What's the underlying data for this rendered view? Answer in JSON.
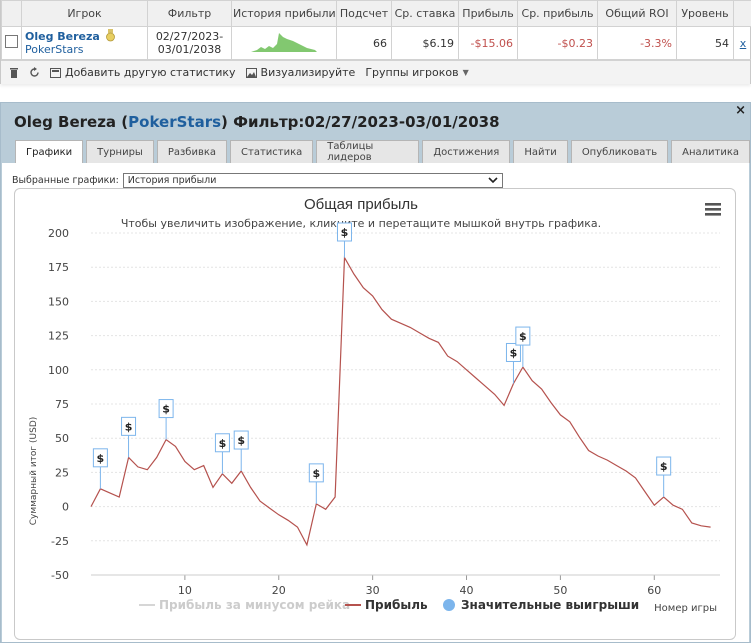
{
  "summary": {
    "headers": [
      "Игрок",
      "Фильтр",
      "История прибыли",
      "Подсчет",
      "Ср. ставка",
      "Прибыль",
      "Ср. прибыль",
      "Общий ROI",
      "Уровень"
    ],
    "row": {
      "player": "Oleg Bereza",
      "site": "PokerStars",
      "filter_line1": "02/27/2023-",
      "filter_line2": "03/01/2038",
      "count": "66",
      "avg_stake": "$6.19",
      "profit": "-$15.06",
      "avg_profit": "-$0.23",
      "roi": "-3.3%",
      "level": "54",
      "remove": "x"
    }
  },
  "toolbar": {
    "add_stats": "Добавить другую статистику",
    "visualize": "Визуализируйте",
    "groups": "Группы игроков"
  },
  "panel": {
    "player": "Oleg Bereza",
    "open_paren": "(",
    "site": "PokerStars",
    "rest": ") Фильтр:02/27/2023-03/01/2038",
    "close": "×",
    "tabs": [
      "Графики",
      "Турниры",
      "Разбивка",
      "Статистика",
      "Таблицы лидеров",
      "Достижения",
      "Найти",
      "Опубликовать",
      "Аналитика"
    ],
    "selected_label": "Выбранные графики:",
    "selected_value": "История прибыли"
  },
  "chart_data": {
    "type": "line",
    "title": "Общая прибыль",
    "subtitle": "Чтобы увеличить изображение, кликните и перетащите мышкой внутрь графика.",
    "xlabel": "Номер игры",
    "ylabel": "Суммарный итог (USD)",
    "xlim": [
      0,
      67
    ],
    "ylim": [
      -50,
      200
    ],
    "x_ticks": [
      10,
      20,
      30,
      40,
      50,
      60
    ],
    "y_ticks": [
      -50,
      -25,
      0,
      25,
      50,
      75,
      100,
      125,
      150,
      175,
      200
    ],
    "grid": true,
    "legend_position": "bottom",
    "series": [
      {
        "name": "Прибыль",
        "color": "#b5524e",
        "x": [
          0,
          1,
          2,
          3,
          4,
          5,
          6,
          7,
          8,
          9,
          10,
          11,
          12,
          13,
          14,
          15,
          16,
          17,
          18,
          19,
          20,
          21,
          22,
          23,
          24,
          25,
          26,
          27,
          28,
          29,
          30,
          31,
          32,
          33,
          34,
          35,
          36,
          37,
          38,
          39,
          40,
          41,
          42,
          43,
          44,
          45,
          46,
          47,
          48,
          49,
          50,
          51,
          52,
          53,
          54,
          55,
          56,
          57,
          58,
          59,
          60,
          61,
          62,
          63,
          64,
          65,
          66
        ],
        "y": [
          0,
          13,
          10,
          7,
          36,
          29,
          27,
          36,
          49,
          44,
          33,
          27,
          30,
          14,
          24,
          17,
          26,
          14,
          4,
          -1,
          -6,
          -10,
          -15,
          -28,
          2,
          -2,
          7,
          182,
          170,
          160,
          154,
          144,
          137,
          134,
          131,
          127,
          123,
          120,
          110,
          106,
          100,
          94,
          88,
          82,
          74,
          90,
          102,
          92,
          86,
          76,
          67,
          62,
          51,
          41,
          37,
          34,
          30,
          26,
          21,
          11,
          1,
          7,
          1,
          -2,
          -12,
          -14,
          -15
        ]
      },
      {
        "name": "Прибыль за минусом рейка",
        "color": "#d6d6d6",
        "x": [],
        "y": []
      }
    ],
    "markers": {
      "name": "Значительные выигрыши",
      "color": "#7cb5ec",
      "label": "$",
      "x": [
        1,
        4,
        8,
        14,
        16,
        24,
        27,
        45,
        46,
        61
      ]
    }
  }
}
